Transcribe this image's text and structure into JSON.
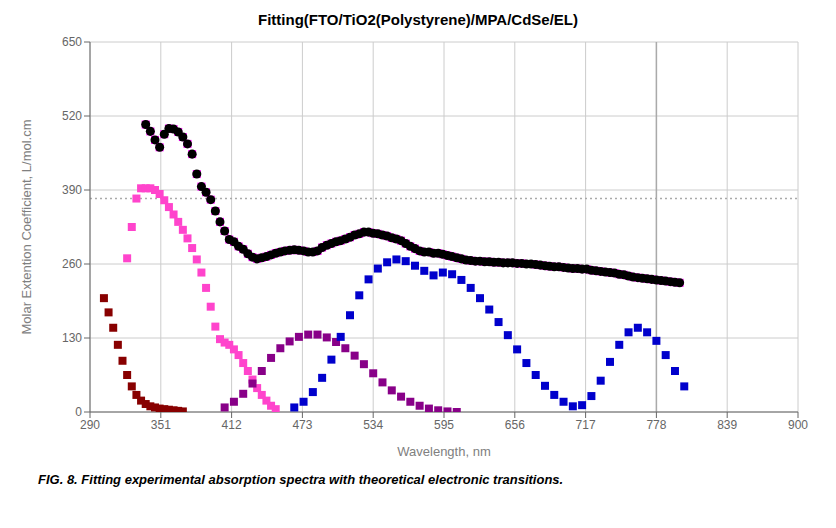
{
  "chart_data": {
    "type": "scatter",
    "title": "Fitting(FTO/TiO2(Polystyrene)/MPA/CdSe/EL)",
    "x_label": "Wavelength, nm",
    "y_label": "Molar Extention Coefficient, L/mol.cm",
    "annotations": [
      "FIG. 8. Fitting experimental absorption spectra with theoretical electronic transitions."
    ],
    "xlim": [
      290,
      900
    ],
    "ylim": [
      0,
      650
    ],
    "xticks": [
      290,
      351,
      412,
      473,
      534,
      595,
      656,
      717,
      778,
      839,
      900
    ],
    "yticks": [
      0,
      130,
      260,
      390,
      520,
      650
    ],
    "grid": true,
    "reference_lines": [
      {
        "axis": "y",
        "value": 375,
        "color": "#aaaaaa",
        "line_style": "dotted"
      },
      {
        "axis": "x",
        "value": 778,
        "color": "#aaaaaa",
        "line_style": "solid"
      }
    ],
    "series": [
      {
        "color": "#880000",
        "marker": "square",
        "x": [
          302,
          306,
          310,
          314,
          318,
          322,
          326,
          330,
          334,
          338,
          342,
          346,
          350,
          354,
          358,
          362,
          366,
          370
        ],
        "values": [
          200,
          175,
          148,
          118,
          90,
          65,
          45,
          30,
          20,
          14,
          10,
          8,
          6,
          5,
          4,
          3,
          2,
          1
        ]
      },
      {
        "color": "#ff44cc",
        "marker": "square",
        "x": [
          322,
          326,
          330,
          334,
          338,
          342,
          346,
          350,
          354,
          358,
          362,
          366,
          370,
          374,
          378,
          382,
          386,
          390,
          394,
          398,
          402,
          406,
          410,
          414,
          418,
          422,
          426,
          430,
          434,
          438,
          442,
          446,
          450
        ],
        "values": [
          270,
          325,
          375,
          393,
          393,
          393,
          390,
          383,
          372,
          360,
          347,
          334,
          320,
          305,
          288,
          268,
          245,
          218,
          185,
          150,
          128,
          122,
          118,
          110,
          100,
          86,
          72,
          57,
          42,
          30,
          20,
          11,
          5
        ]
      },
      {
        "color": "#880088",
        "marker": "square",
        "x": [
          406,
          414,
          422,
          430,
          438,
          446,
          454,
          462,
          470,
          478,
          486,
          494,
          502,
          510,
          518,
          526,
          534,
          542,
          550,
          558,
          566,
          574,
          582,
          590,
          598,
          606
        ],
        "values": [
          8,
          18,
          32,
          50,
          72,
          95,
          112,
          124,
          132,
          136,
          136,
          131,
          123,
          112,
          99,
          84,
          68,
          52,
          38,
          27,
          18,
          11,
          6,
          3,
          1,
          0
        ]
      },
      {
        "color": "#0000cc",
        "marker": "square",
        "x": [
          466,
          474,
          482,
          490,
          498,
          506,
          514,
          522,
          530,
          538,
          546,
          554,
          562,
          570,
          578,
          586,
          594,
          602,
          610,
          618,
          626,
          634,
          642,
          650,
          658,
          666,
          674,
          682,
          690,
          698,
          706,
          714,
          722,
          730,
          738,
          746,
          754,
          762,
          770,
          778,
          786,
          794,
          802
        ],
        "values": [
          8,
          18,
          35,
          60,
          92,
          132,
          170,
          205,
          233,
          252,
          263,
          268,
          265,
          257,
          248,
          240,
          245,
          242,
          232,
          218,
          200,
          180,
          158,
          135,
          110,
          86,
          65,
          46,
          30,
          18,
          10,
          12,
          28,
          55,
          88,
          118,
          140,
          148,
          140,
          125,
          100,
          72,
          45
        ]
      },
      {
        "color": "#ff00ff",
        "marker": "square",
        "x": [
          338,
          342,
          346,
          350,
          354,
          358,
          362,
          366,
          370,
          374,
          378,
          382,
          386,
          390,
          394,
          398,
          402,
          406,
          410,
          414,
          418,
          422,
          426,
          430,
          434,
          438,
          442,
          446,
          450,
          454,
          458,
          462,
          466,
          470,
          474,
          478,
          482,
          486,
          490,
          494,
          498,
          502,
          506,
          510,
          514,
          518,
          522,
          526,
          530,
          534,
          538,
          542,
          546,
          550,
          554,
          558,
          562,
          566,
          570,
          574,
          578,
          582,
          586,
          590,
          594,
          598,
          602,
          606,
          610,
          614,
          618,
          622,
          626,
          630,
          634,
          638,
          642,
          646,
          650,
          654,
          658,
          662,
          666,
          670,
          674,
          678,
          682,
          686,
          690,
          694,
          698,
          702,
          706,
          710,
          714,
          718,
          722,
          726,
          730,
          734,
          738,
          742,
          746,
          750,
          754,
          758,
          762,
          766,
          770,
          774,
          778,
          782,
          786,
          790,
          794,
          798
        ],
        "values": [
          505,
          493,
          478,
          465,
          488,
          498,
          497,
          492,
          483,
          471,
          453,
          418,
          396,
          386,
          373,
          353,
          334,
          318,
          303,
          299,
          291,
          286,
          278,
          272,
          269,
          271,
          273,
          276,
          279,
          281,
          283,
          284,
          285,
          284,
          283,
          281,
          281,
          283,
          289,
          293,
          296,
          299,
          301,
          304,
          307,
          311,
          313,
          316,
          316,
          314,
          313,
          311,
          309,
          306,
          304,
          301,
          296,
          291,
          287,
          283,
          281,
          281,
          279,
          279,
          277,
          275,
          273,
          271,
          269,
          267,
          266,
          265,
          265,
          264,
          264,
          263,
          263,
          262,
          262,
          262,
          261,
          261,
          260,
          260,
          259,
          258,
          257,
          256,
          255,
          255,
          254,
          253,
          252,
          252,
          251,
          251,
          249,
          248,
          247,
          246,
          245,
          244,
          242,
          241,
          239,
          237,
          236,
          235,
          234,
          233,
          232,
          231,
          230,
          229,
          228,
          227
        ]
      },
      {
        "color": "#000000",
        "marker": "circle",
        "x": [
          338,
          342,
          346,
          350,
          354,
          358,
          362,
          366,
          370,
          374,
          378,
          382,
          386,
          390,
          394,
          398,
          402,
          406,
          410,
          414,
          418,
          422,
          426,
          430,
          434,
          438,
          442,
          446,
          450,
          454,
          458,
          462,
          466,
          470,
          474,
          478,
          482,
          486,
          490,
          494,
          498,
          502,
          506,
          510,
          514,
          518,
          522,
          526,
          530,
          534,
          538,
          542,
          546,
          550,
          554,
          558,
          562,
          566,
          570,
          574,
          578,
          582,
          586,
          590,
          594,
          598,
          602,
          606,
          610,
          614,
          618,
          622,
          626,
          630,
          634,
          638,
          642,
          646,
          650,
          654,
          658,
          662,
          666,
          670,
          674,
          678,
          682,
          686,
          690,
          694,
          698,
          702,
          706,
          710,
          714,
          718,
          722,
          726,
          730,
          734,
          738,
          742,
          746,
          750,
          754,
          758,
          762,
          766,
          770,
          774,
          778,
          782,
          786,
          790,
          794,
          798
        ],
        "values": [
          505,
          493,
          478,
          465,
          488,
          498,
          497,
          492,
          483,
          471,
          453,
          418,
          396,
          386,
          373,
          353,
          334,
          318,
          303,
          299,
          291,
          286,
          278,
          272,
          269,
          271,
          273,
          276,
          279,
          281,
          283,
          284,
          285,
          284,
          283,
          281,
          281,
          283,
          289,
          293,
          296,
          299,
          301,
          304,
          307,
          311,
          313,
          316,
          316,
          314,
          313,
          311,
          309,
          306,
          304,
          301,
          296,
          291,
          287,
          283,
          281,
          281,
          279,
          279,
          277,
          275,
          273,
          271,
          269,
          267,
          266,
          265,
          265,
          264,
          264,
          263,
          263,
          262,
          262,
          262,
          261,
          261,
          260,
          260,
          259,
          258,
          257,
          256,
          255,
          255,
          254,
          253,
          252,
          252,
          251,
          251,
          249,
          248,
          247,
          246,
          245,
          244,
          242,
          241,
          239,
          237,
          236,
          235,
          234,
          233,
          232,
          231,
          230,
          229,
          228,
          227
        ]
      }
    ]
  }
}
